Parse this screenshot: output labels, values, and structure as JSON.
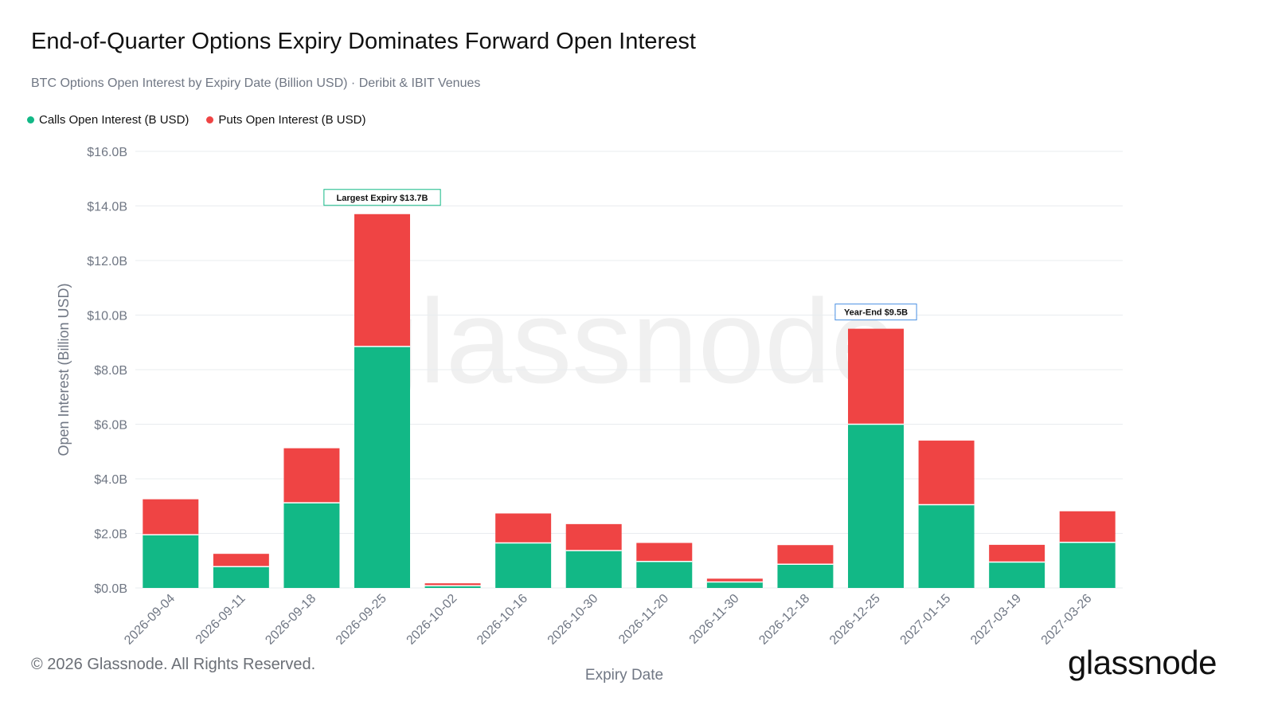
{
  "header": {
    "title": "End-of-Quarter Options Expiry Dominates Forward Open Interest",
    "subtitle": "BTC Options Open Interest by Expiry Date (Billion USD) · Deribit & IBIT Venues"
  },
  "legend": {
    "calls_label": "Calls Open Interest (B USD)",
    "puts_label": "Puts Open Interest (B USD)"
  },
  "colors": {
    "calls": "#12b886",
    "puts": "#ef4444",
    "grid": "#e9ecef",
    "axis_text": "#707784",
    "annotation_green": "#12b886",
    "annotation_blue": "#4a90e2"
  },
  "footer": {
    "copyright": "© 2026 Glassnode. All Rights Reserved.",
    "brand": "glassnode",
    "watermark": "glassnode"
  },
  "chart_data": {
    "type": "bar",
    "stacked": true,
    "xlabel": "Expiry Date",
    "ylabel": "Open Interest (Billion USD)",
    "ylim": [
      0,
      16
    ],
    "yticks": [
      0,
      2,
      4,
      6,
      8,
      10,
      12,
      14,
      16
    ],
    "ytick_labels": [
      "$0.0B",
      "$2.0B",
      "$4.0B",
      "$6.0B",
      "$8.0B",
      "$10.0B",
      "$12.0B",
      "$14.0B",
      "$16.0B"
    ],
    "grid": true,
    "legend_position": "top-left",
    "categories": [
      "2026-09-04",
      "2026-09-11",
      "2026-09-18",
      "2026-09-25",
      "2026-10-02",
      "2026-10-16",
      "2026-10-30",
      "2026-11-20",
      "2026-11-30",
      "2026-12-18",
      "2026-12-25",
      "2027-01-15",
      "2027-03-19",
      "2027-03-26"
    ],
    "series": [
      {
        "name": "Calls Open Interest (B USD)",
        "values": [
          1.95,
          0.78,
          3.12,
          8.85,
          0.08,
          1.65,
          1.37,
          0.97,
          0.22,
          0.87,
          6.0,
          3.05,
          0.95,
          1.67
        ]
      },
      {
        "name": "Puts Open Interest (B USD)",
        "values": [
          1.3,
          0.47,
          2.0,
          4.85,
          0.09,
          1.08,
          0.97,
          0.68,
          0.12,
          0.7,
          3.5,
          2.35,
          0.63,
          1.14
        ]
      }
    ],
    "annotations": [
      {
        "category": "2026-09-25",
        "text": "Largest Expiry $13.7B",
        "style": "green"
      },
      {
        "category": "2026-12-25",
        "text": "Year-End $9.5B",
        "style": "blue"
      }
    ]
  }
}
